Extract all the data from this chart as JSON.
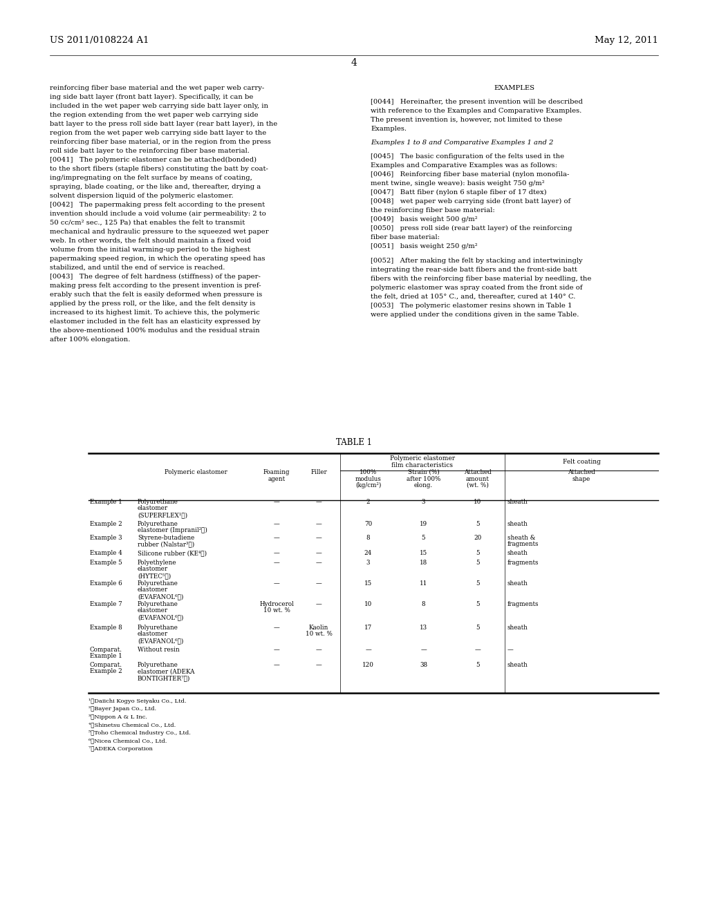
{
  "header_left": "US 2011/0108224 A1",
  "header_right": "May 12, 2011",
  "page_number": "4",
  "bg_color": "#ffffff",
  "text_color": "#000000",
  "left_col_lines": [
    "reinforcing fiber base material and the wet paper web carry-",
    "ing side batt layer (front batt layer). Specifically, it can be",
    "included in the wet paper web carrying side batt layer only, in",
    "the region extending from the wet paper web carrying side",
    "batt layer to the press roll side batt layer (rear batt layer), in the",
    "region from the wet paper web carrying side batt layer to the",
    "reinforcing fiber base material, or in the region from the press",
    "roll side batt layer to the reinforcing fiber base material.",
    "[0041]   The polymeric elastomer can be attached(bonded)",
    "to the short fibers (staple fibers) constituting the batt by coat-",
    "ing/impregnating on the felt surface by means of coating,",
    "spraying, blade coating, or the like and, thereafter, drying a",
    "solvent dispersion liquid of the polymeric elastomer.",
    "[0042]   The papermaking press felt according to the present",
    "invention should include a void volume (air permeability: 2 to",
    "50 cc/cm² sec., 125 Pa) that enables the felt to transmit",
    "mechanical and hydraulic pressure to the squeezed wet paper",
    "web. In other words, the felt should maintain a fixed void",
    "volume from the initial warming-up period to the highest",
    "papermaking speed region, in which the operating speed has",
    "stabilized, and until the end of service is reached.",
    "[0043]   The degree of felt hardness (stiffness) of the paper-",
    "making press felt according to the present invention is pref-",
    "erably such that the felt is easily deformed when pressure is",
    "applied by the press roll, or the like, and the felt density is",
    "increased to its highest limit. To achieve this, the polymeric",
    "elastomer included in the felt has an elasticity expressed by",
    "the above-mentioned 100% modulus and the residual strain",
    "after 100% elongation."
  ],
  "right_col_lines": [
    {
      "text": "EXAMPLES",
      "style": "center_bold"
    },
    {
      "text": "",
      "style": "blank"
    },
    {
      "text": "[0044]   Hereinafter, the present invention will be described",
      "style": "normal"
    },
    {
      "text": "with reference to the Examples and Comparative Examples.",
      "style": "normal"
    },
    {
      "text": "The present invention is, however, not limited to these",
      "style": "normal"
    },
    {
      "text": "Examples.",
      "style": "normal"
    },
    {
      "text": "",
      "style": "blank"
    },
    {
      "text": "Examples 1 to 8 and Comparative Examples 1 and 2",
      "style": "italic"
    },
    {
      "text": "",
      "style": "blank"
    },
    {
      "text": "[0045]   The basic configuration of the felts used in the",
      "style": "normal"
    },
    {
      "text": "Examples and Comparative Examples was as follows:",
      "style": "normal"
    },
    {
      "text": "[0046]   Reinforcing fiber base material (nylon monofila-",
      "style": "normal"
    },
    {
      "text": "ment twine, single weave): basis weight 750 g/m²",
      "style": "normal"
    },
    {
      "text": "[0047]   Batt fiber (nylon 6 staple fiber of 17 dtex)",
      "style": "normal"
    },
    {
      "text": "[0048]   wet paper web carrying side (front batt layer) of",
      "style": "normal"
    },
    {
      "text": "the reinforcing fiber base material:",
      "style": "normal"
    },
    {
      "text": "[0049]   basis weight 500 g/m²",
      "style": "normal"
    },
    {
      "text": "[0050]   press roll side (rear batt layer) of the reinforcing",
      "style": "normal"
    },
    {
      "text": "fiber base material:",
      "style": "normal"
    },
    {
      "text": "[0051]   basis weight 250 g/m²",
      "style": "normal"
    },
    {
      "text": "",
      "style": "blank"
    },
    {
      "text": "[0052]   After making the felt by stacking and intertwiningly",
      "style": "normal"
    },
    {
      "text": "integrating the rear-side batt fibers and the front-side batt",
      "style": "normal"
    },
    {
      "text": "fibers with the reinforcing fiber base material by needling, the",
      "style": "normal"
    },
    {
      "text": "polymeric elastomer was spray coated from the front side of",
      "style": "normal"
    },
    {
      "text": "the felt, dried at 105° C., and, thereafter, cured at 140° C.",
      "style": "normal"
    },
    {
      "text": "[0053]   The polymeric elastomer resins shown in Table 1",
      "style": "normal"
    },
    {
      "text": "were applied under the conditions given in the same Table.",
      "style": "normal"
    }
  ],
  "table_title": "TABLE 1",
  "rows": [
    {
      "label": [
        "Example 1"
      ],
      "elastomer": [
        "Polyurethane",
        "elastomer",
        "(SUPERFLEX¹⧉)"
      ],
      "foaming": [
        "—"
      ],
      "filler": [
        "—"
      ],
      "modulus": "2",
      "strain": "3",
      "amount": "10",
      "shape": [
        "sheath"
      ]
    },
    {
      "label": [
        "Example 2"
      ],
      "elastomer": [
        "Polyurethane",
        "elastomer (Impranil²⧉)"
      ],
      "foaming": [
        "—"
      ],
      "filler": [
        "—"
      ],
      "modulus": "70",
      "strain": "19",
      "amount": "5",
      "shape": [
        "sheath"
      ]
    },
    {
      "label": [
        "Example 3"
      ],
      "elastomer": [
        "Styrene-butadiene",
        "rubber (Nalstar³⧉)"
      ],
      "foaming": [
        "—"
      ],
      "filler": [
        "—"
      ],
      "modulus": "8",
      "strain": "5",
      "amount": "20",
      "shape": [
        "sheath &",
        "fragments"
      ]
    },
    {
      "label": [
        "Example 4"
      ],
      "elastomer": [
        "Silicone rubber (KE⁴⧉)"
      ],
      "foaming": [
        "—"
      ],
      "filler": [
        "—"
      ],
      "modulus": "24",
      "strain": "15",
      "amount": "5",
      "shape": [
        "sheath"
      ]
    },
    {
      "label": [
        "Example 5"
      ],
      "elastomer": [
        "Polyethylene",
        "elastomer",
        "(HYTEC⁵⧉)"
      ],
      "foaming": [
        "—"
      ],
      "filler": [
        "—"
      ],
      "modulus": "3",
      "strain": "18",
      "amount": "5",
      "shape": [
        "fragments"
      ]
    },
    {
      "label": [
        "Example 6"
      ],
      "elastomer": [
        "Polyurethane",
        "elastomer",
        "(EVAFANOL⁶⧉)"
      ],
      "foaming": [
        "—"
      ],
      "filler": [
        "—"
      ],
      "modulus": "15",
      "strain": "11",
      "amount": "5",
      "shape": [
        "sheath"
      ]
    },
    {
      "label": [
        "Example 7"
      ],
      "elastomer": [
        "Polyurethane",
        "elastomer",
        "(EVAFANOL⁶⧉)"
      ],
      "foaming": [
        "Hydrocerol",
        "10 wt. %"
      ],
      "filler": [
        "—"
      ],
      "modulus": "10",
      "strain": "8",
      "amount": "5",
      "shape": [
        "fragments"
      ]
    },
    {
      "label": [
        "Example 8"
      ],
      "elastomer": [
        "Polyurethane",
        "elastomer",
        "(EVAFANOL⁶⧉)"
      ],
      "foaming": [
        "—"
      ],
      "filler": [
        "Kaolin",
        "10 wt. %"
      ],
      "modulus": "17",
      "strain": "13",
      "amount": "5",
      "shape": [
        "sheath"
      ]
    },
    {
      "label": [
        "Comparat.",
        "Example 1"
      ],
      "elastomer": [
        "Without resin"
      ],
      "foaming": [
        "—"
      ],
      "filler": [
        "—"
      ],
      "modulus": "—",
      "strain": "—",
      "amount": "—",
      "shape": [
        "—"
      ]
    },
    {
      "label": [
        "Comparat.",
        "Example 2"
      ],
      "elastomer": [
        "Polyurethane",
        "elastomer (ADEKA",
        "BONTIGHTER⁷⧉)"
      ],
      "foaming": [
        "—"
      ],
      "filler": [
        "—"
      ],
      "modulus": "120",
      "strain": "38",
      "amount": "5",
      "shape": [
        "sheath"
      ]
    }
  ],
  "footnotes": [
    "¹⧉Daiichi Kogyo Seiyaku Co., Ltd.",
    "²⧉Bayer Japan Co., Ltd.",
    "³⧉Nippon A & L Inc.",
    "⁴⧉Shinetsu Chemical Co., Ltd.",
    "⁵⧉Toho Chemical Industry Co., Ltd.",
    "⁶⧉Nicea Chemical Co., Ltd.",
    "⁷⧉ADEKA Corporation"
  ]
}
